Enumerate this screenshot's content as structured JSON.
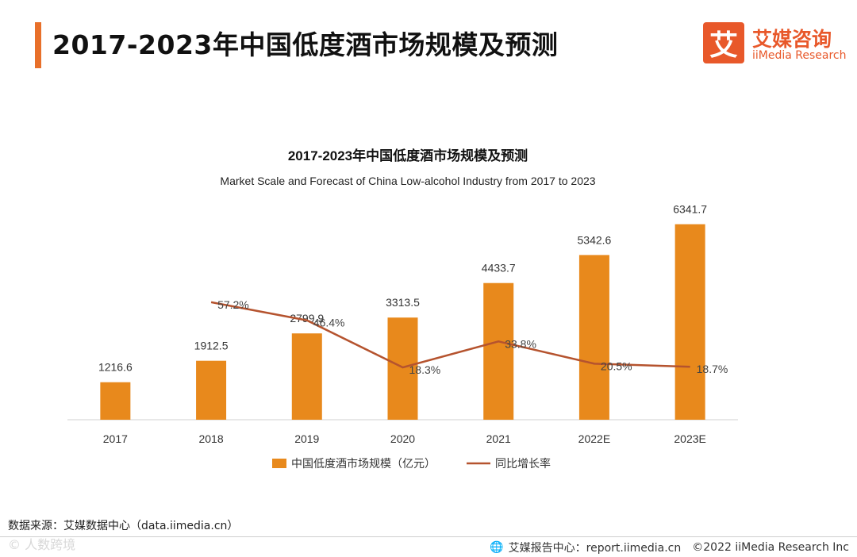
{
  "page": {
    "title": "2017-2023年中国低度酒市场规模及预测"
  },
  "logo": {
    "mark": "艾",
    "name_cn": "艾媒咨询",
    "name_en": "iiMedia Research"
  },
  "colors": {
    "accent": "#e8702a",
    "bar": "#e8891c",
    "line": "#b5532e",
    "brand": "#e8582a"
  },
  "chart_data": {
    "type": "bar",
    "title": "2017-2023年中国低度酒市场规模及预测",
    "subtitle": "Market Scale and Forecast of China Low-alcohol Industry from 2017 to 2023",
    "categories": [
      "2017",
      "2018",
      "2019",
      "2020",
      "2021",
      "2022E",
      "2023E"
    ],
    "series": [
      {
        "name": "中国低度酒市场规模（亿元）",
        "type": "bar",
        "values": [
          1216.6,
          1912.5,
          2799.9,
          3313.5,
          4433.7,
          5342.6,
          6341.7
        ],
        "labels": [
          "1216.6",
          "1912.5",
          "2799.9",
          "3313.5",
          "4433.7",
          "5342.6",
          "6341.7"
        ]
      },
      {
        "name": "同比增长率",
        "type": "line",
        "values": [
          null,
          57.2,
          46.4,
          18.3,
          33.8,
          20.5,
          18.7
        ],
        "labels": [
          "",
          "57.2%",
          "46.4%",
          "18.3%",
          "33.8%",
          "20.5%",
          "18.7%"
        ]
      }
    ],
    "ylim": [
      0,
      7000
    ],
    "y2lim": [
      0,
      130
    ],
    "xlabel": "",
    "ylabel": "",
    "legend": "bottom-center",
    "grid": false
  },
  "source": {
    "text": "数据来源：艾媒数据中心（data.iimedia.cn）"
  },
  "watermark": {
    "text": "© 人数跨境"
  },
  "footer": {
    "report_text": "艾媒报告中心：report.iimedia.cn",
    "copyright": "©2022 iiMedia Research Inc"
  }
}
